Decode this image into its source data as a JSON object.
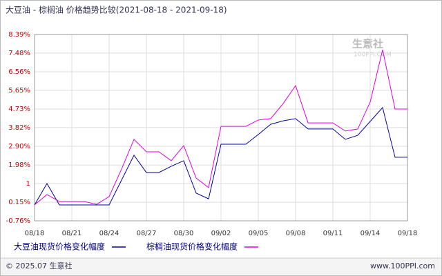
{
  "chart_data": {
    "type": "line",
    "title": "大豆油 - 棕榈油 价格趋势比较(2021-08-18 - 2021-09-18)",
    "watermark": [
      "生意社",
      "100PPI.COM"
    ],
    "categories": [
      "08/18",
      null,
      null,
      "08/21",
      null,
      null,
      "08/24",
      null,
      null,
      "08/27",
      null,
      null,
      "08/30",
      null,
      null,
      "09/02",
      null,
      null,
      "09/05",
      null,
      null,
      "09/08",
      null,
      null,
      "09/11",
      null,
      null,
      "09/14",
      null,
      null,
      "09/18"
    ],
    "series": [
      {
        "name": "大豆油现货价格变化幅度",
        "color": "#0000a0",
        "values": [
          0.02,
          1.07,
          0.02,
          0.02,
          0.02,
          0.02,
          0.02,
          1.24,
          2.46,
          1.61,
          1.61,
          1.92,
          2.19,
          0.6,
          0.32,
          3.0,
          3.0,
          3.0,
          3.48,
          3.98,
          4.15,
          4.26,
          3.75,
          3.75,
          3.75,
          3.24,
          3.44,
          4.12,
          4.8,
          2.36,
          2.36
        ]
      },
      {
        "name": "棕榈油现货价格变化幅度",
        "color": "#e000e0",
        "values": [
          0.02,
          0.53,
          0.19,
          0.19,
          0.19,
          0.05,
          0.43,
          1.78,
          3.24,
          2.63,
          2.63,
          2.19,
          2.93,
          1.34,
          0.87,
          3.88,
          3.88,
          3.88,
          4.19,
          4.26,
          5.0,
          5.88,
          4.05,
          4.05,
          4.05,
          3.65,
          3.75,
          5.07,
          7.64,
          4.73,
          4.73
        ]
      }
    ],
    "ylim": [
      -0.76,
      8.39
    ],
    "yticks": [
      {
        "value": -0.76,
        "label": "-0.76%"
      },
      {
        "value": 0.15,
        "label": "0.15%"
      },
      {
        "value": 1.07,
        "label": "1"
      },
      {
        "value": 1.98,
        "label": "1.98%"
      },
      {
        "value": 2.9,
        "label": "2.90%"
      },
      {
        "value": 3.82,
        "label": "3.82%"
      },
      {
        "value": 4.73,
        "label": "4.73%"
      },
      {
        "value": 5.65,
        "label": "5.65%"
      },
      {
        "value": 6.56,
        "label": "6.56%"
      },
      {
        "value": 7.48,
        "label": "7.48%"
      },
      {
        "value": 8.39,
        "label": "8.39%"
      }
    ],
    "grid": true,
    "footer_left": "© 2025.07 生意社",
    "footer_right": "www.100PPI.com"
  }
}
